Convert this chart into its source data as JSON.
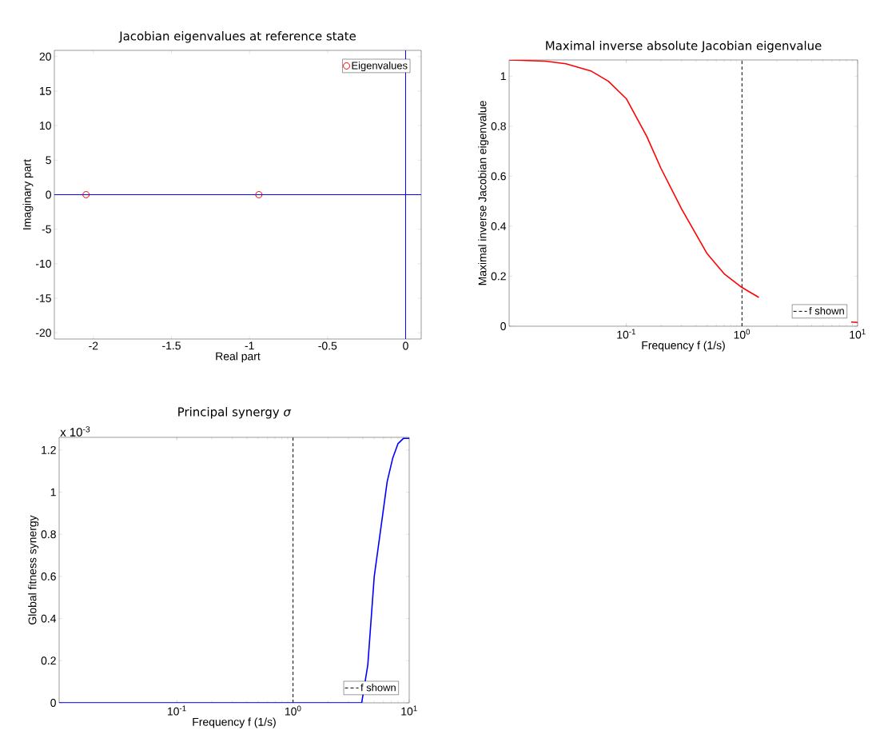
{
  "chart_data": [
    {
      "type": "scatter",
      "title": "Jacobian eigenvalues at reference state",
      "xlabel": "Real part",
      "ylabel": "Imaginary part",
      "xlim": [
        -2.25,
        0.1
      ],
      "ylim": [
        -20.9,
        20.9
      ],
      "xticks": [
        -2,
        -1.5,
        -1,
        -0.5,
        0
      ],
      "yticks": [
        -20,
        -15,
        -10,
        -5,
        0,
        5,
        10,
        15,
        20
      ],
      "legend": "top right",
      "marker": "circle",
      "series": [
        {
          "name": "Eigenvalues",
          "color": "#ff0000",
          "x": [
            -2.047,
            -0.94
          ],
          "values": [
            0,
            0
          ]
        }
      ],
      "ref_lines": [
        {
          "axis": "x",
          "value": 0,
          "color": "#0000ff"
        },
        {
          "axis": "y",
          "value": 0,
          "color": "#0000ff"
        }
      ]
    },
    {
      "type": "line",
      "title": "Maximal inverse absolute Jacobian eigenvalue",
      "xlabel": "Frequency f (1/s)",
      "ylabel": "Maximal inverse Jacobian eigenvalue",
      "log": "x",
      "xlim": [
        0.0097,
        10
      ],
      "ylim": [
        0,
        1.065
      ],
      "xticks": [
        {
          "value": 0.1,
          "label": "10$^{-1}$"
        },
        {
          "value": 1,
          "label": "10$^{0}$"
        },
        {
          "value": 10,
          "label": "10$^{1}$"
        }
      ],
      "yticks": [
        0,
        0.2,
        0.4,
        0.6,
        0.8,
        1
      ],
      "legend": "bottom right",
      "series": [
        {
          "color": "#ff0000",
          "x": [
            0.0097,
            0.02,
            0.03,
            0.05,
            0.07,
            0.1,
            0.15,
            0.2,
            0.3,
            0.5,
            0.7,
            1.0,
            1.4,
            3,
            8.8,
            10
          ],
          "values": [
            1.065,
            1.06,
            1.05,
            1.02,
            0.98,
            0.91,
            0.76,
            0.63,
            0.47,
            0.29,
            0.21,
            0.155,
            0.115,
            null,
            0.017,
            0.015
          ]
        }
      ],
      "ref_lines": [
        {
          "axis": "x",
          "value": 1,
          "label": "f shown",
          "color": "#000000",
          "line_style": "dashed"
        }
      ]
    },
    {
      "type": "line",
      "title": "Principal synergy *σ*",
      "xlabel": "Frequency f (1/s)",
      "ylabel": "Global fitness synergy",
      "log": "x",
      "xlim": [
        0.0097,
        10
      ],
      "ylim": [
        0,
        1.26
      ],
      "xticks": [
        {
          "value": 0.1,
          "label": "10$^{-1}$"
        },
        {
          "value": 1,
          "label": "10$^{0}$"
        },
        {
          "value": 10,
          "label": "10$^{1}$"
        }
      ],
      "yticks": [
        0,
        0.2,
        0.4,
        0.6,
        0.8,
        1,
        1.2
      ],
      "legend": "bottom right",
      "annotations": [
        "x 10$^{-3}$"
      ],
      "series": [
        {
          "color": "#0000ff",
          "x": [
            0.0097,
            1,
            3.9,
            4.4,
            5.0,
            5.8,
            6.46,
            7.2,
            8.0,
            8.9,
            10
          ],
          "values": [
            0,
            0,
            0,
            0.18,
            0.6,
            0.86,
            1.05,
            1.16,
            1.23,
            1.255,
            1.255
          ]
        }
      ],
      "ref_lines": [
        {
          "axis": "x",
          "value": 1,
          "label": "f shown",
          "color": "#000000",
          "line_style": "dashed"
        }
      ]
    }
  ]
}
